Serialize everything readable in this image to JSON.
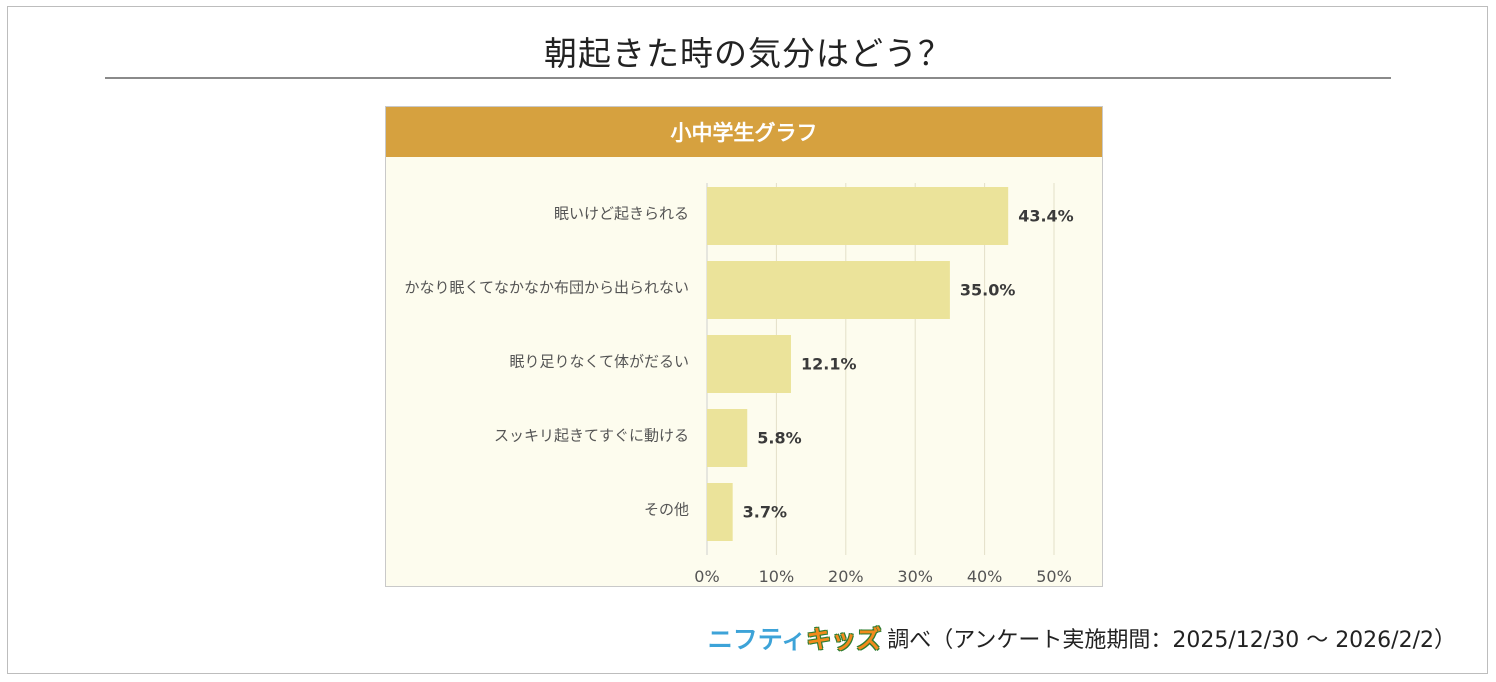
{
  "title": "朝起きた時の気分はどう？",
  "footer": {
    "logo_part1": "ニフティ",
    "logo_part2": "キッズ",
    "text": "調べ（アンケート実施期間：2025/12/30 ～ 2026/2/2）"
  },
  "chart_data": {
    "type": "bar",
    "orientation": "horizontal",
    "title": "小中学生グラフ",
    "categories": [
      "眠いけど起きられる",
      "かなり眠くてなかなか布団から出られない",
      "眠り足りなくて体がだるい",
      "スッキリ起きてすぐに動ける",
      "その他"
    ],
    "values": [
      43.4,
      35.0,
      12.1,
      5.8,
      3.7
    ],
    "value_labels": [
      "43.4%",
      "35.0%",
      "12.1%",
      "5.8%",
      "3.7%"
    ],
    "x_ticks": [
      "0%",
      "10%",
      "20%",
      "30%",
      "40%",
      "50%"
    ],
    "xlim": [
      0,
      50
    ],
    "grid": true,
    "bar_color": "#ebe39a",
    "header_color": "#d6a13f",
    "panel_color": "#fdfcee"
  }
}
